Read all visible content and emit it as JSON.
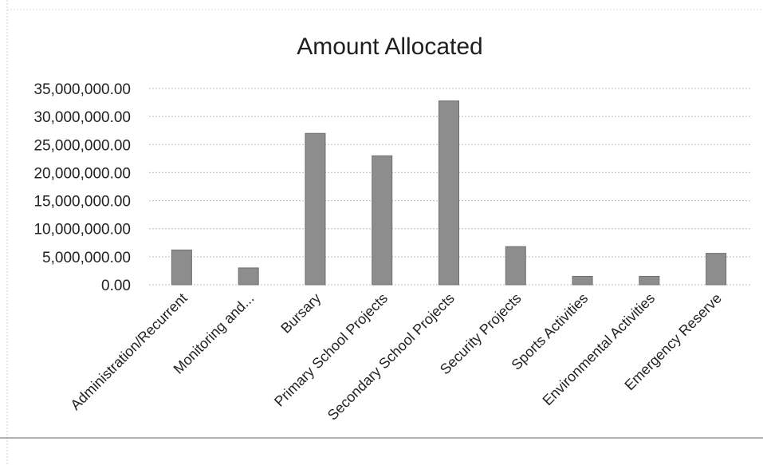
{
  "chart_data": {
    "type": "bar",
    "title": "Amount Allocated",
    "xlabel": "",
    "ylabel": "",
    "categories": [
      "Administration/Recurrent",
      "Monitoring and...",
      "Bursary",
      "Primary School Projects",
      "Secondary School Projects",
      "Security Projects",
      "Sports Activities",
      "Environmental Activities",
      "Emergency Reserve"
    ],
    "values": [
      6200000,
      3000000,
      27000000,
      23000000,
      32800000,
      6800000,
      1500000,
      1500000,
      5600000
    ],
    "ylim": [
      0,
      35000000
    ],
    "yticks": [
      0,
      5000000,
      10000000,
      15000000,
      20000000,
      25000000,
      30000000,
      35000000
    ],
    "ytick_labels": [
      "0.00",
      "5,000,000.00",
      "10,000,000.00",
      "15,000,000.00",
      "20,000,000.00",
      "25,000,000.00",
      "30,000,000.00",
      "35,000,000.00"
    ],
    "grid": true,
    "legend": "none",
    "colors": {
      "bar_fill": "#8d8d8d",
      "bar_stroke": "#6f6f6f",
      "grid": "#bdbdbd",
      "text": "#222222"
    }
  }
}
